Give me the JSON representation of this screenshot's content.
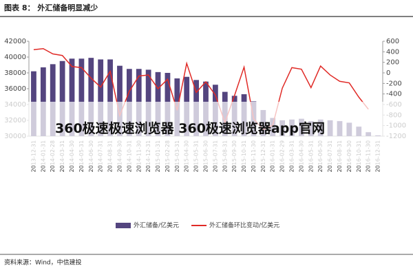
{
  "chart_data": {
    "type": "bar",
    "title": "图表 8： 外汇储备明显减少",
    "source": "资料来源：Wind，中信建投",
    "overlay_text": "360极速极速浏览器 360极速浏览器app官网",
    "categories": [
      "2013-12-31",
      "2014-01-31",
      "2014-02-28",
      "2014-03-31",
      "2014-04-30",
      "2014-05-31",
      "2014-06-30",
      "2014-07-31",
      "2014-08-31",
      "2014-09-30",
      "2014-10-31",
      "2014-11-30",
      "2014-12-31",
      "2015-01-31",
      "2015-02-28",
      "2015-03-31",
      "2015-04-30",
      "2015-05-31",
      "2015-06-30",
      "2015-07-31",
      "2015-08-31",
      "2015-09-30",
      "2015-10-31",
      "2015-11-30",
      "2015-12-31",
      "2016-01-31",
      "2016-02-29",
      "2016-03-31",
      "2016-04-30",
      "2016-05-31",
      "2016-06-30",
      "2016-07-31",
      "2016-08-31",
      "2016-09-30",
      "2016-10-31",
      "2016-11-30",
      "2016-12-31"
    ],
    "series": [
      {
        "name": "外汇储备/亿美元",
        "color": "#54457f",
        "kind": "bar",
        "values": [
          38200,
          38700,
          39100,
          39500,
          39800,
          39800,
          39900,
          39700,
          39700,
          38900,
          38500,
          38500,
          38400,
          38100,
          38000,
          37300,
          37500,
          37100,
          36900,
          36500,
          35600,
          35100,
          35300,
          34400,
          33300,
          32300,
          32000,
          32100,
          32200,
          31900,
          32100,
          32000,
          31900,
          31700,
          31200,
          30500,
          30100
        ]
      },
      {
        "name": "外汇储备环比变动/亿美元",
        "color": "#e02a26",
        "kind": "line",
        "axis": "y2",
        "values": [
          440,
          460,
          360,
          330,
          120,
          100,
          -100,
          -270,
          30,
          -810,
          -350,
          -60,
          -40,
          -300,
          -120,
          -710,
          180,
          -370,
          -170,
          -420,
          -940,
          -430,
          110,
          -870,
          -1080,
          -990,
          -290,
          100,
          70,
          -280,
          130,
          -40,
          -160,
          -190,
          -460,
          -690,
          null
        ]
      }
    ],
    "ylim": [
      30000,
      42000
    ],
    "yticks": [
      30000,
      32000,
      34000,
      36000,
      38000,
      40000,
      42000
    ],
    "y2lim": [
      -1200,
      600
    ],
    "y2ticks": [
      -1200,
      -1000,
      -800,
      -600,
      -400,
      -200,
      0,
      200,
      400,
      600
    ],
    "grid": false
  }
}
